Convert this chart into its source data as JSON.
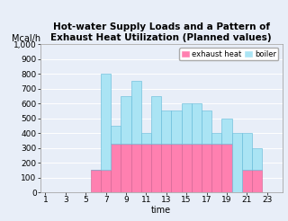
{
  "title": "Hot-water Supply Loads and a Pattern of\nExhaust Heat Utilization (Planned values)",
  "xlabel": "time",
  "ylabel": "Mcal/h",
  "hours": [
    6,
    7,
    8,
    9,
    10,
    11,
    12,
    13,
    14,
    15,
    16,
    17,
    18,
    19,
    20,
    21,
    22
  ],
  "exhaust_heat": [
    150,
    150,
    325,
    325,
    325,
    325,
    325,
    325,
    325,
    325,
    325,
    325,
    325,
    325,
    0,
    150,
    150
  ],
  "boiler": [
    0,
    650,
    125,
    325,
    425,
    75,
    325,
    225,
    225,
    275,
    275,
    225,
    75,
    175,
    400,
    250,
    150
  ],
  "exhaust_color": "#FF80B0",
  "boiler_color": "#AAE4F4",
  "background_color": "#E8EEF8",
  "ytick_labels": [
    "0",
    "100",
    "200",
    "300",
    "400",
    "500",
    "600",
    "700",
    "800",
    "900",
    "1,000"
  ],
  "ytick_vals": [
    0,
    100,
    200,
    300,
    400,
    500,
    600,
    700,
    800,
    900,
    1000
  ],
  "xticks": [
    1,
    3,
    5,
    7,
    9,
    11,
    13,
    15,
    17,
    19,
    21,
    23
  ],
  "ylim": [
    0,
    1000
  ],
  "xlim": [
    0.5,
    24.5
  ]
}
